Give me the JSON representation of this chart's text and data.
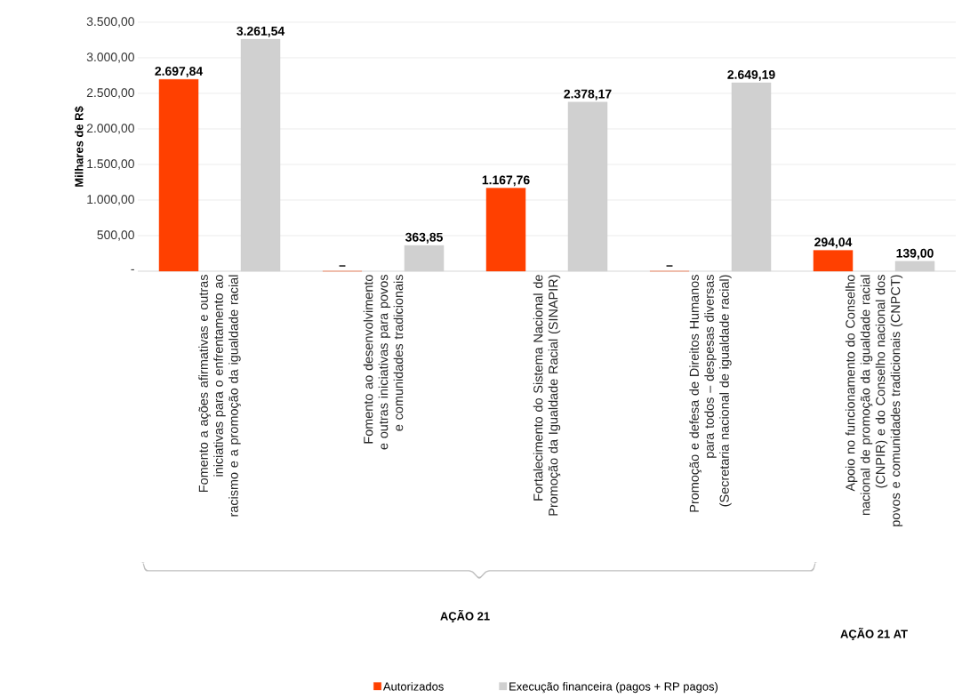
{
  "chart_data": {
    "type": "bar",
    "ylabel": "Milhares de R$",
    "categories": [
      "Fomento a ações afirmativas e outras iniciativas para o enfrentamento ao racismo e a promoção da igualdade racial",
      "Fomento ao desenvolvimento e outras iniciativas para povos e comunidades tradicionais",
      "Fortalecimento do Sistema Nacional de Promoção da Igualdade Racial (SINAPIR)",
      "Promoção e defesa de Direitos Humanos para todos – despesas diversas (Secretaria nacional de igualdade racial)",
      "Apoio no funcionamento do Conselho nacional de promoção da igualdade racial (CNPIR) e do Conselho nacional dos povos e comunidades tradicionais (CNPCT)"
    ],
    "series": [
      {
        "name": "Autorizados",
        "color": "#ff4000",
        "values": [
          2697.84,
          0,
          1167.76,
          0,
          294.04
        ],
        "value_labels": [
          "2.697,84",
          "–",
          "1.167,76",
          "–",
          "294,04"
        ]
      },
      {
        "name": "Execução financeira (pagos + RP pagos)",
        "color": "#d0d0d0",
        "values": [
          3261.54,
          363.85,
          2378.17,
          2649.19,
          139.0
        ],
        "value_labels": [
          "3.261,54",
          "363,85",
          "2.378,17",
          "2.649,19",
          "139,00"
        ]
      }
    ],
    "ylim": [
      0,
      3500
    ],
    "yticks": [
      {
        "value": 0,
        "label": "-"
      },
      {
        "value": 500,
        "label": "500,00"
      },
      {
        "value": 1000,
        "label": "1.000,00"
      },
      {
        "value": 1500,
        "label": "1.500,00"
      },
      {
        "value": 2000,
        "label": "2.000,00"
      },
      {
        "value": 2500,
        "label": "2.500,00"
      },
      {
        "value": 3000,
        "label": "3.000,00"
      },
      {
        "value": 3500,
        "label": "3.500,00"
      }
    ],
    "grid": "y",
    "legend": "bottom",
    "annotations": [
      "AÇÃO 21",
      "AÇÃO 21 AT"
    ]
  }
}
